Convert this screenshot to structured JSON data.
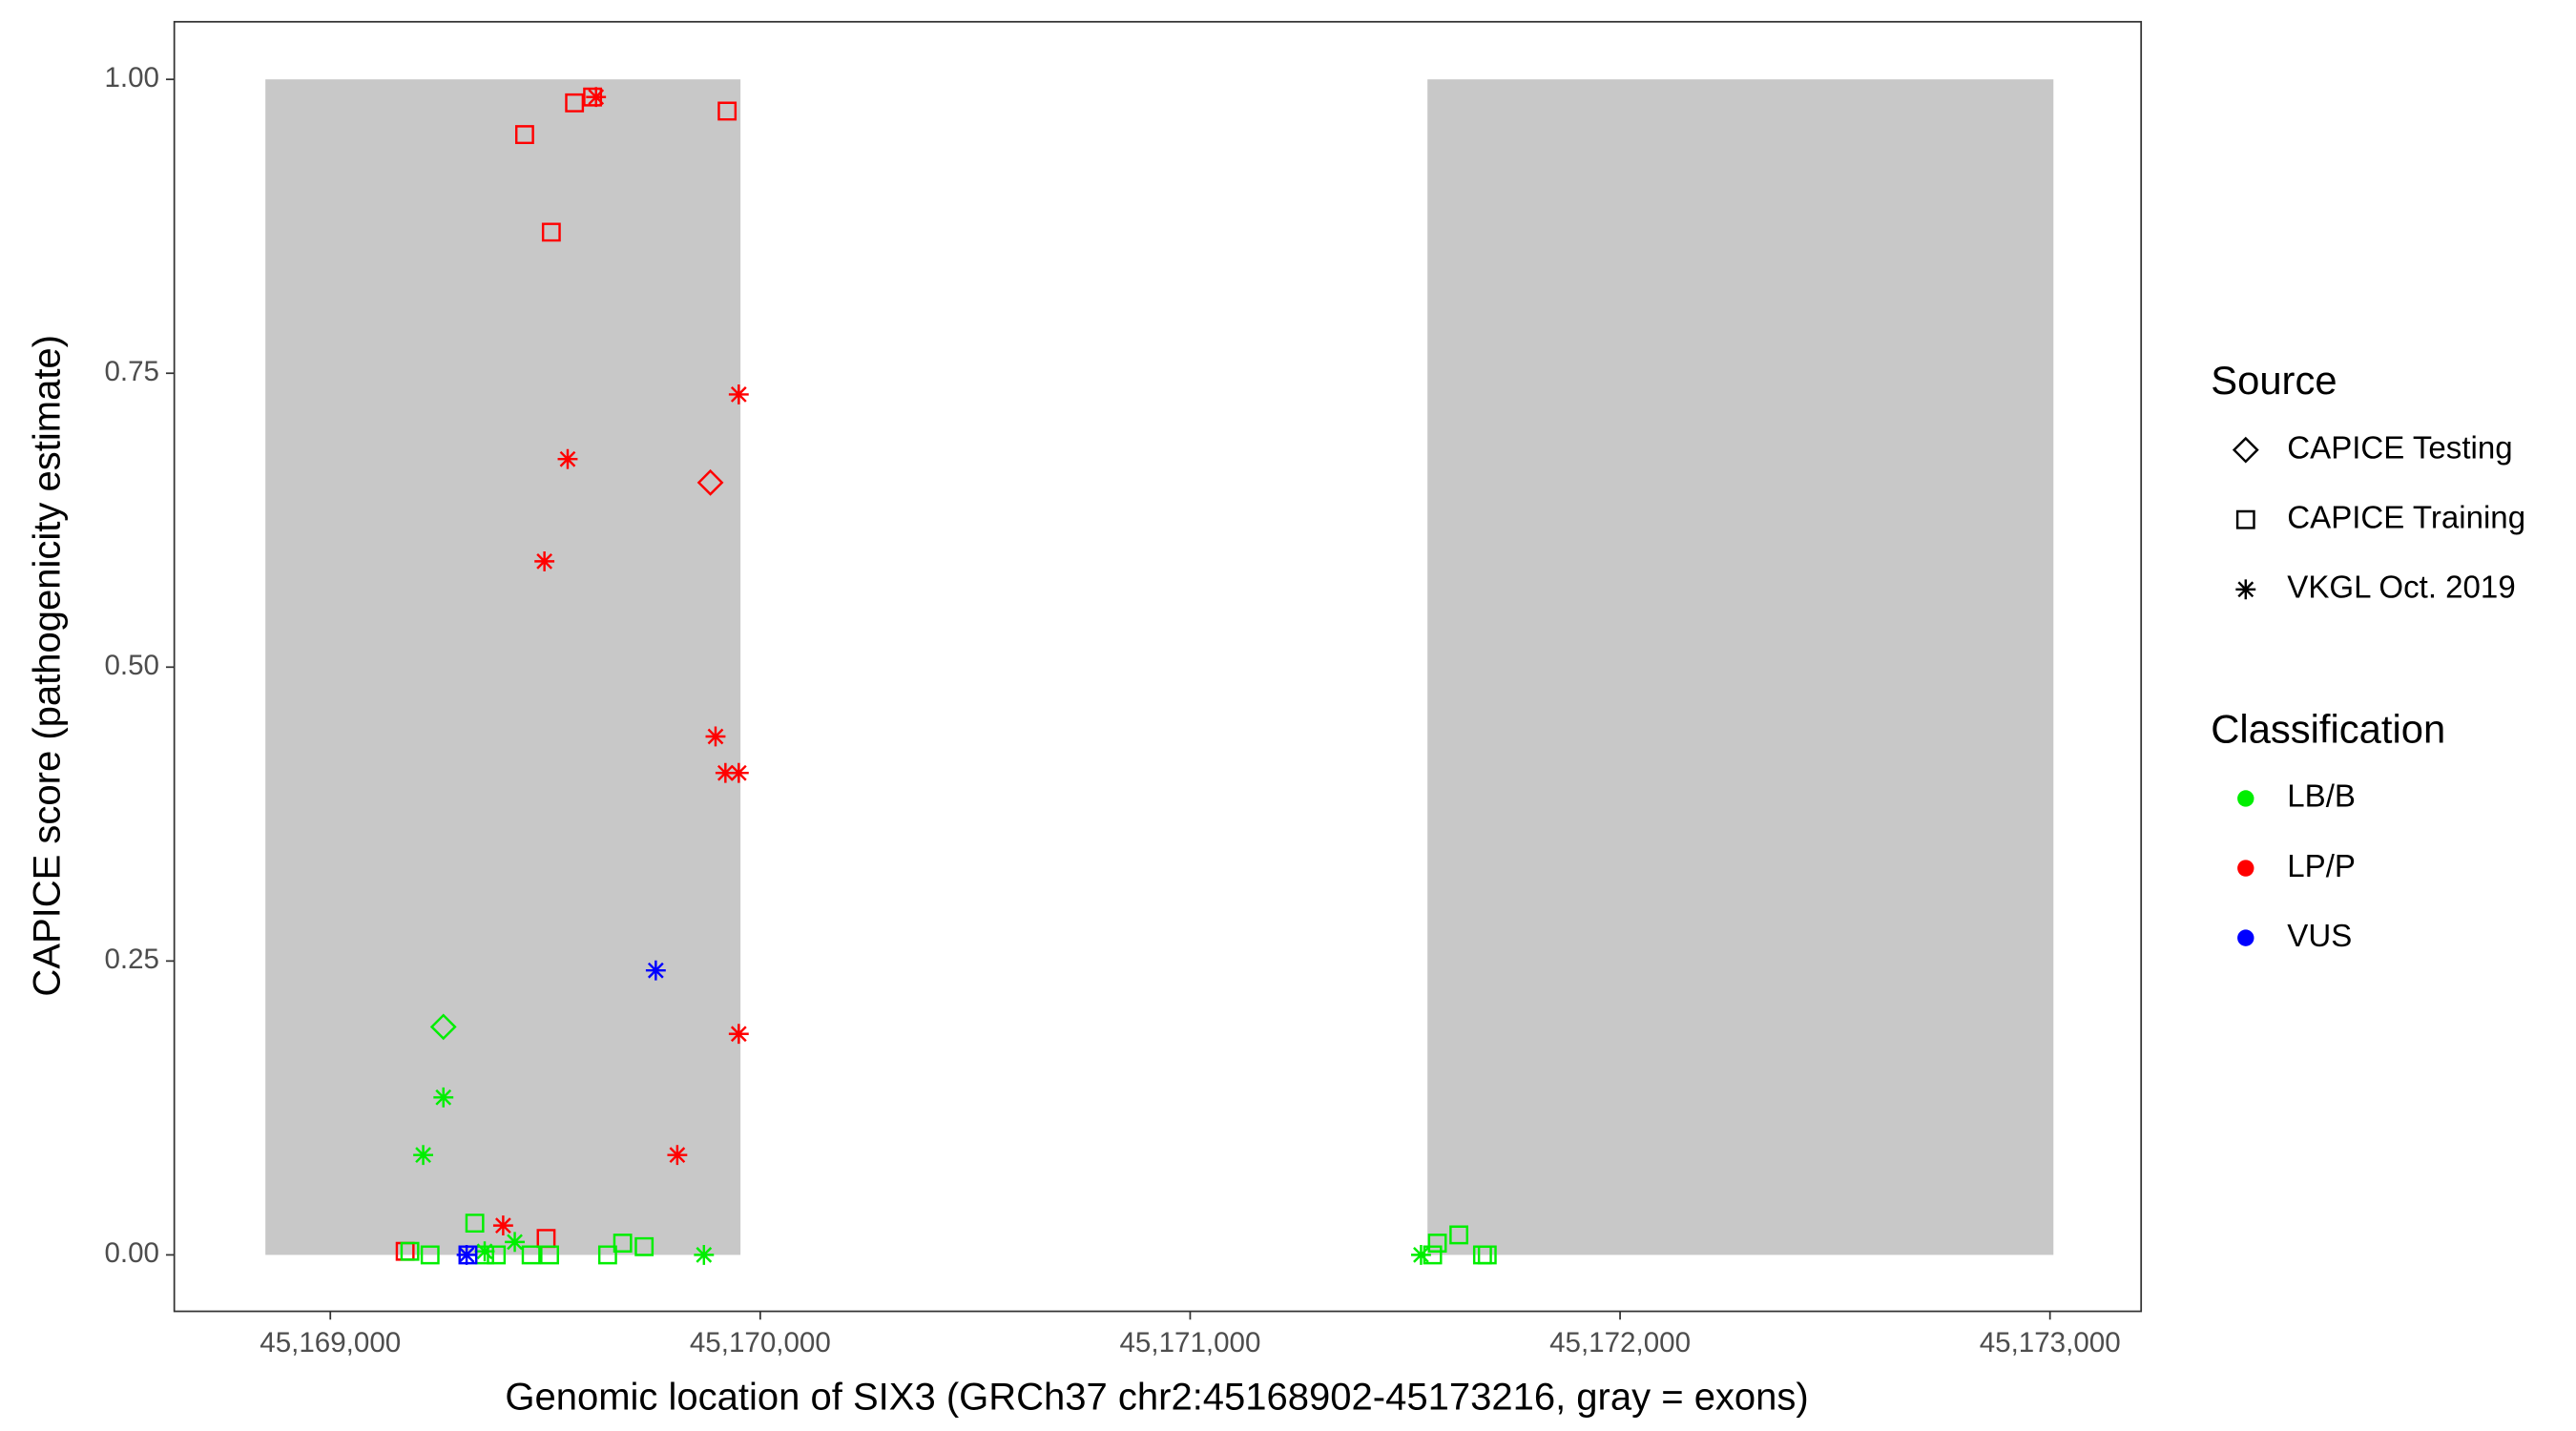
{
  "chart_data": {
    "type": "scatter",
    "x_label": "Genomic location of SIX3 (GRCh37 chr2:45168902-45173216, gray = exons)",
    "y_label": "CAPICE score (pathogenicity estimate)",
    "xlim": [
      45168637,
      45173212
    ],
    "ylim": [
      -0.048,
      1.049
    ],
    "xticks": [
      {
        "value": 45169000,
        "label": "45,169,000"
      },
      {
        "value": 45170000,
        "label": "45,170,000"
      },
      {
        "value": 45171000,
        "label": "45,171,000"
      },
      {
        "value": 45172000,
        "label": "45,172,000"
      },
      {
        "value": 45173000,
        "label": "45,173,000"
      }
    ],
    "yticks": [
      {
        "value": 0,
        "label": "0.00"
      },
      {
        "value": 0.25,
        "label": "0.25"
      },
      {
        "value": 0.5,
        "label": "0.50"
      },
      {
        "value": 0.75,
        "label": "0.75"
      },
      {
        "value": 1,
        "label": "1.00"
      }
    ],
    "exons": [
      [
        45168849,
        45169954
      ],
      [
        45171552,
        45173008
      ]
    ],
    "exon_y": [
      0,
      1
    ],
    "exon_color": "#c8c8c8",
    "source_legend_title": "Source",
    "sources": [
      {
        "name": "CAPICE Testing",
        "shape": "diamond"
      },
      {
        "name": "CAPICE Training",
        "shape": "square"
      },
      {
        "name": "VKGL Oct. 2019",
        "shape": "star"
      }
    ],
    "class_legend_title": "Classification",
    "classes": [
      {
        "name": "LB/B",
        "color": "#00ee00"
      },
      {
        "name": "LP/P",
        "color": "#ff0000"
      },
      {
        "name": "VUS",
        "color": "#0000ff"
      }
    ],
    "series": [
      {
        "source": 1,
        "class": 1,
        "x": [
          45169452,
          45169568,
          45169610,
          45169923,
          45169514,
          45169174,
          45169502
        ],
        "values": [
          0.953,
          0.98,
          0.985,
          0.973,
          0.87,
          0.003,
          0.014
        ]
      },
      {
        "source": 2,
        "class": 1,
        "x": [
          45169618,
          45169950,
          45169552,
          45169498,
          45169896,
          45169919,
          45169950,
          45169950,
          45169807,
          45169402
        ],
        "values": [
          0.985,
          0.732,
          0.677,
          0.59,
          0.441,
          0.41,
          0.41,
          0.188,
          0.085,
          0.025
        ]
      },
      {
        "source": 0,
        "class": 1,
        "x": [
          45169884
        ],
        "values": [
          0.657
        ]
      },
      {
        "source": 0,
        "class": 0,
        "x": [
          45169263
        ],
        "values": [
          0.194
        ]
      },
      {
        "source": 2,
        "class": 0,
        "x": [
          45169263,
          45169216,
          45169429,
          45169869,
          45171537,
          45169359
        ],
        "values": [
          0.134,
          0.085,
          0.011,
          0,
          0,
          0.003
        ]
      },
      {
        "source": 1,
        "class": 0,
        "x": [
          45169336,
          45169185,
          45169232,
          45169359,
          45169386,
          45169467,
          45169510,
          45169645,
          45169680,
          45169730,
          45171564,
          45171575,
          45171625,
          45171680,
          45171691
        ],
        "values": [
          0.027,
          0.003,
          0,
          0,
          0,
          0,
          0,
          0,
          0.01,
          0.007,
          0,
          0.01,
          0.017,
          0,
          0
        ]
      },
      {
        "source": 1,
        "class": 2,
        "x": [
          45169320
        ],
        "values": [
          0
        ]
      },
      {
        "source": 2,
        "class": 2,
        "x": [
          45169757,
          45169317
        ],
        "values": [
          0.242,
          0
        ]
      }
    ]
  }
}
